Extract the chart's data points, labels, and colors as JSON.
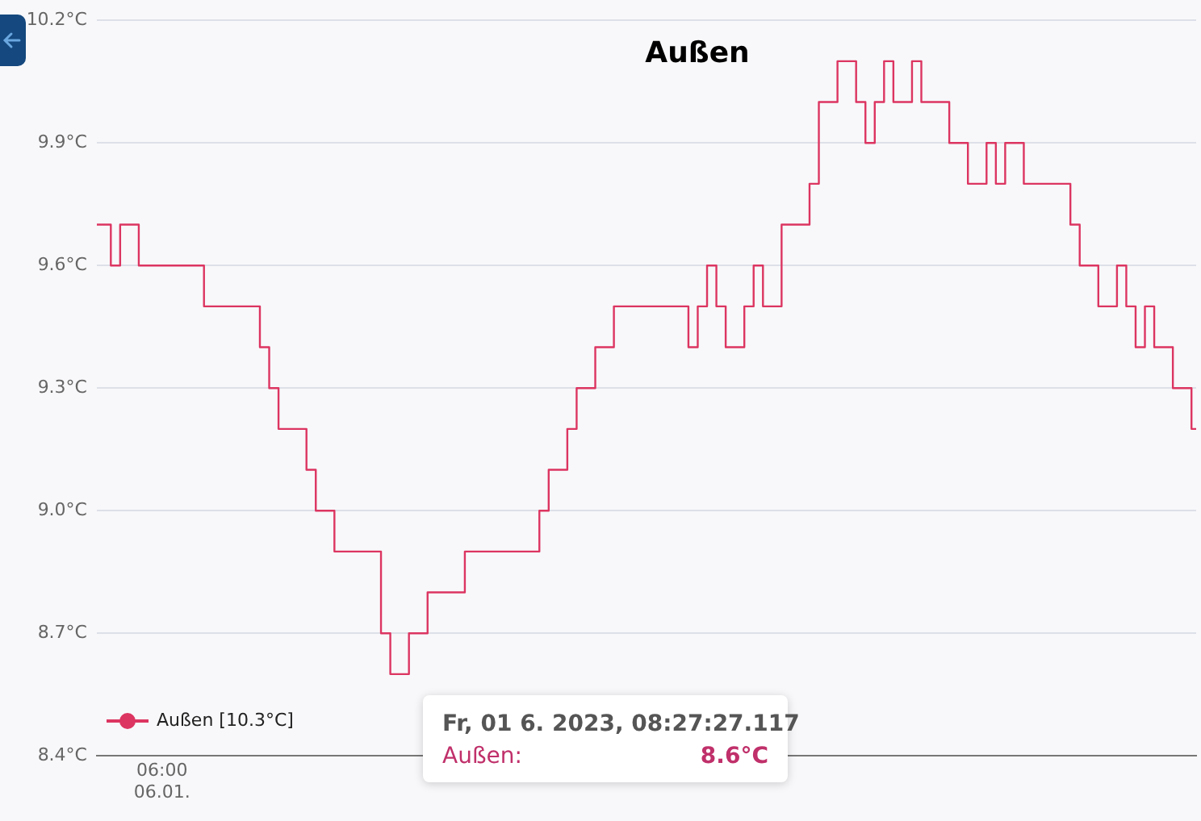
{
  "chart_data": {
    "type": "step",
    "title": "Außen",
    "categories": [
      null,
      null,
      null,
      null,
      null,
      null,
      null,
      "06:00\n06.01.",
      null,
      null,
      null,
      null,
      null,
      null,
      null,
      null,
      null,
      null,
      null,
      null,
      null,
      null,
      null,
      null,
      null,
      null,
      null,
      null,
      null,
      null,
      null,
      null,
      null,
      null,
      null,
      null,
      null,
      null,
      null,
      null,
      null,
      null,
      null,
      null,
      null,
      null,
      null,
      null,
      null,
      null,
      null,
      null,
      null,
      null,
      null,
      null,
      null,
      null,
      null,
      null,
      null,
      null,
      null,
      null,
      null,
      null,
      null,
      null,
      null,
      null,
      null,
      null,
      null,
      null,
      null,
      null,
      null,
      null,
      null,
      null,
      null,
      null,
      null,
      null,
      null,
      null,
      null,
      null,
      null,
      null,
      null,
      null,
      null,
      null,
      null,
      null,
      null,
      null,
      null,
      null,
      null,
      null,
      null,
      null,
      null,
      null,
      null,
      null,
      null,
      null,
      null,
      null,
      null,
      null,
      null,
      null,
      null,
      null,
      null
    ],
    "ylim": [
      8.4,
      10.2
    ],
    "yticks": [
      {
        "value": 8.4,
        "label": "8.4°C"
      },
      {
        "value": 8.7,
        "label": "8.7°C"
      },
      {
        "value": 9.0,
        "label": "9.0°C"
      },
      {
        "value": 9.3,
        "label": "9.3°C"
      },
      {
        "value": 9.6,
        "label": "9.6°C"
      },
      {
        "value": 9.9,
        "label": "9.9°C"
      },
      {
        "value": 10.2,
        "label": "10.2°C"
      }
    ],
    "grid": "y",
    "legend": "bottom left",
    "marker": "none",
    "annotations": [
      "Fr, 01 6. 2023, 08:27:27.117",
      "Außen:",
      "8.6°C"
    ],
    "series": [
      {
        "name": "Außen [10.3°C]",
        "color": "#dc3561",
        "values": [
          9.7,
          9.7,
          9.6,
          9.7,
          9.7,
          9.6,
          9.6,
          9.6,
          9.6,
          9.6,
          9.6,
          9.6,
          9.5,
          9.5,
          9.5,
          9.5,
          9.5,
          9.5,
          9.4,
          9.3,
          9.2,
          9.2,
          9.2,
          9.1,
          9.0,
          9.0,
          8.9,
          8.9,
          8.9,
          8.9,
          8.9,
          8.7,
          8.6,
          8.6,
          8.7,
          8.7,
          8.8,
          8.8,
          8.8,
          8.8,
          8.9,
          8.9,
          8.9,
          8.9,
          8.9,
          8.9,
          8.9,
          8.9,
          9.0,
          9.1,
          9.1,
          9.2,
          9.3,
          9.3,
          9.4,
          9.4,
          9.5,
          9.5,
          9.5,
          9.5,
          9.5,
          9.5,
          9.5,
          9.5,
          9.4,
          9.5,
          9.6,
          9.5,
          9.4,
          9.4,
          9.5,
          9.6,
          9.5,
          9.5,
          9.7,
          9.7,
          9.7,
          9.8,
          10.0,
          10.0,
          10.1,
          10.1,
          10.0,
          9.9,
          10.0,
          10.1,
          10.0,
          10.0,
          10.1,
          10.0,
          10.0,
          10.0,
          9.9,
          9.9,
          9.8,
          9.8,
          9.9,
          9.8,
          9.9,
          9.9,
          9.8,
          9.8,
          9.8,
          9.8,
          9.8,
          9.7,
          9.6,
          9.6,
          9.5,
          9.5,
          9.6,
          9.5,
          9.4,
          9.5,
          9.4,
          9.4,
          9.3,
          9.3,
          9.2
        ]
      }
    ]
  }
}
